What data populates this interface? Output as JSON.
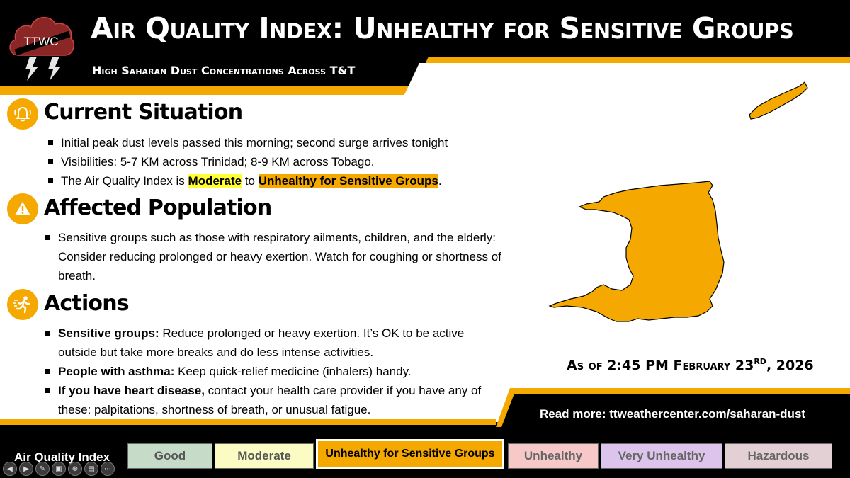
{
  "header": {
    "title": "Air Quality Index: Unhealthy for Sensitive Groups",
    "subtitle": "High Saharan Dust Concentrations Across T&T",
    "logo_text": "TTWC"
  },
  "sections": {
    "current": {
      "title": "Current Situation",
      "bullet1": "Initial peak dust levels passed this morning; second surge arrives tonight",
      "bullet2": "Visibilities: 5-7 KM across Trinidad;  8-9 KM across Tobago.",
      "bullet3_pre": "The Air Quality Index is ",
      "bullet3_mod": "Moderate",
      "bullet3_mid": " to ",
      "bullet3_usg": "Unhealthy for Sensitive Groups",
      "bullet3_end": "."
    },
    "affected": {
      "title": "Affected Population",
      "bullet1": "Sensitive groups such as those with respiratory ailments, children, and the elderly: Consider reducing prolonged or heavy exertion. Watch for coughing or shortness of breath."
    },
    "actions": {
      "title": "Actions",
      "b1_lead": "Sensitive groups:",
      "b1_text": " Reduce prolonged or heavy exertion. It’s OK to be active outside but take more breaks and do less intense activities.",
      "b2_lead": "People with asthma:",
      "b2_text": " Keep quick-relief medicine (inhalers) handy.",
      "b3_lead": "If you have heart disease,",
      "b3_text": " contact your health care provider if you have any of these: palpitations, shortness of breath, or unusual fatigue."
    }
  },
  "asof": {
    "pre": "As of 2:45 PM February 23",
    "sup": "RD",
    "post": ", 2026"
  },
  "read_more": "Read more: ttweathercenter.com/saharan-dust",
  "aqi_scale": {
    "label": "Air Quality Index",
    "levels": [
      {
        "name": "Good",
        "color": "#c6dcc8",
        "text_color": "#555555"
      },
      {
        "name": "Moderate",
        "color": "#fbfbc4",
        "text_color": "#555555"
      },
      {
        "name": "Unhealthy for Sensitive Groups",
        "color": "#f5a800",
        "text_color": "#000000"
      },
      {
        "name": "Unhealthy",
        "color": "#f6c8c8",
        "text_color": "#666666"
      },
      {
        "name": "Very Unhealthy",
        "color": "#dcc4ec",
        "text_color": "#666666"
      },
      {
        "name": "Hazardous",
        "color": "#e2d0d4",
        "text_color": "#666666"
      }
    ],
    "current_index": 2
  },
  "colors": {
    "accent": "#f5a800",
    "header_bg": "#000000",
    "moderate_highlight": "#ffff33"
  },
  "icons": {
    "current": "bell-icon",
    "affected": "warning-icon",
    "actions": "running-person-icon",
    "logo": "storm-cloud-icon"
  }
}
